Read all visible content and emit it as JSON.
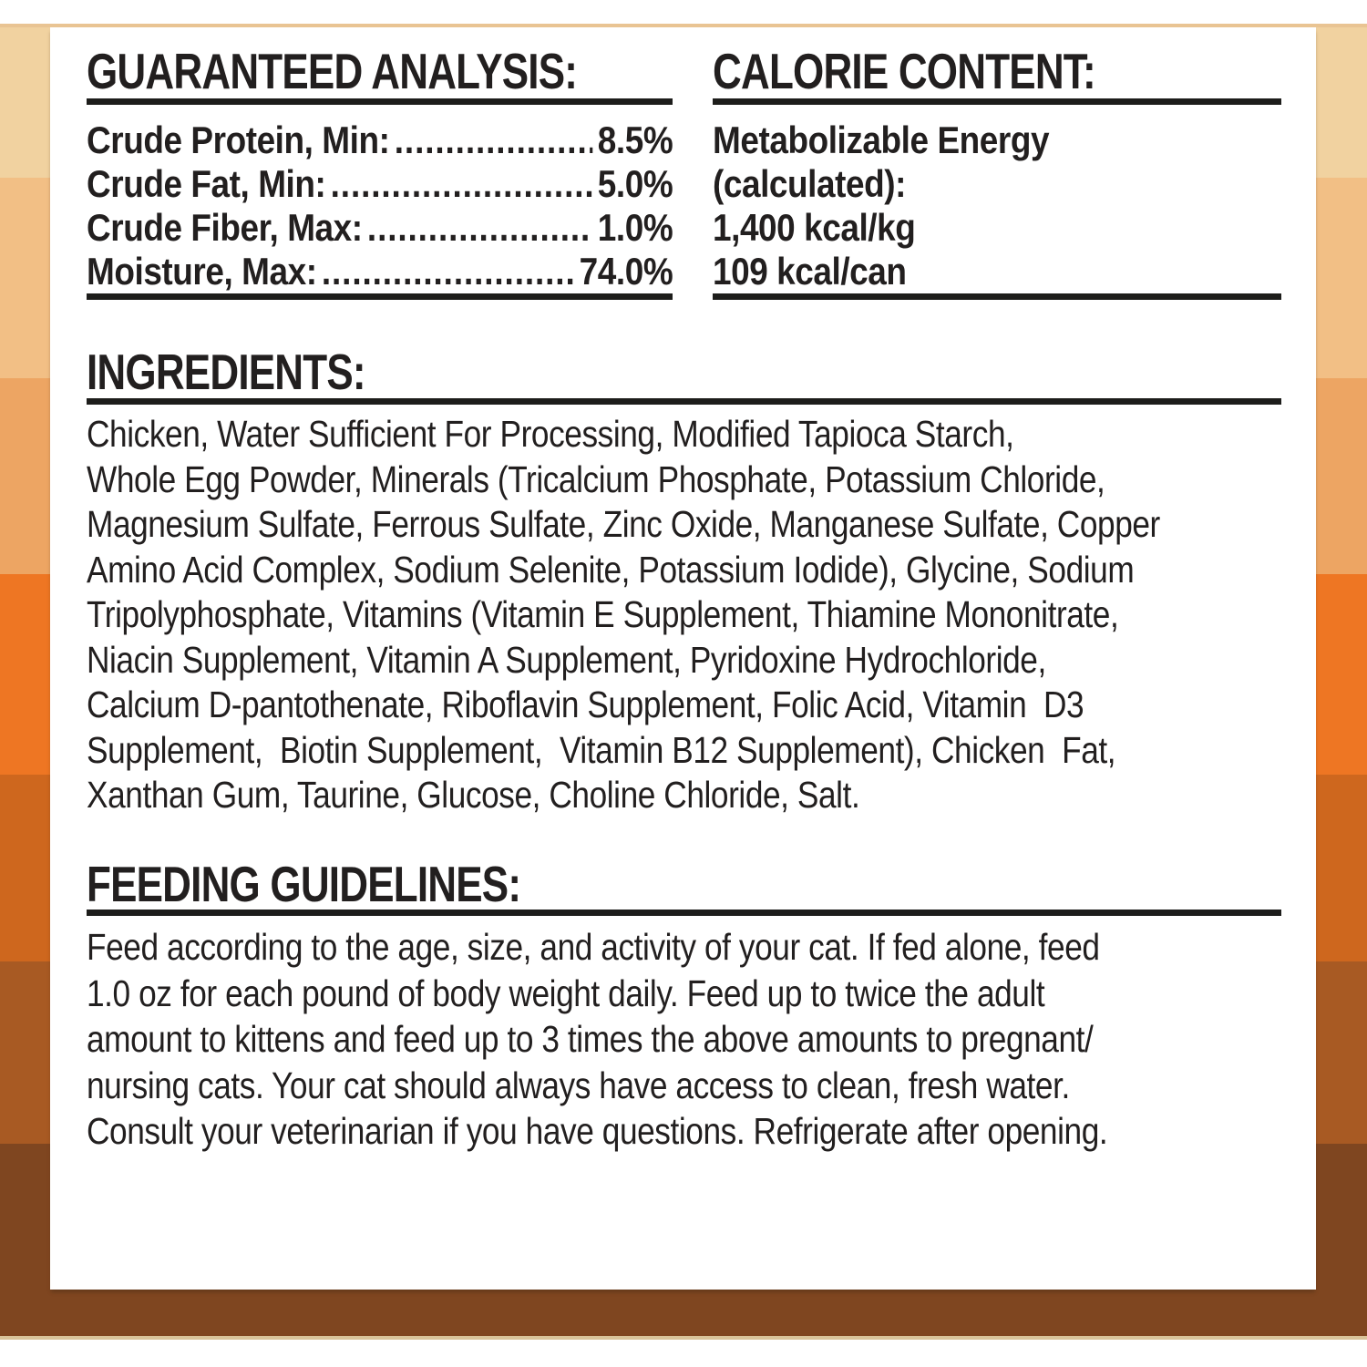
{
  "frame": {
    "band_colors": [
      "#f1d2a0",
      "#f2bf85",
      "#eda563",
      "#ee7623",
      "#ce671e",
      "#a85a23",
      "#7f4620"
    ],
    "top_line_color": "#e9c493",
    "bottom_line_color": "#d9c49a",
    "panel_color": "#ffffff",
    "rule_color": "#1d1d1b",
    "text_color": "#221f1f"
  },
  "guaranteed_analysis": {
    "title": "GUARANTEED ANALYSIS:",
    "rows": [
      {
        "label": "Crude Protein, Min:",
        "leader": "............",
        "value": "8.5%"
      },
      {
        "label": "Crude Fat, Min:",
        "leader": "...................",
        "value": "5.0%"
      },
      {
        "label": "Crude Fiber, Max:",
        "leader": "................",
        "value": "1.0%"
      },
      {
        "label": "Moisture, Max:",
        "leader": "..................",
        "value": "74.0%"
      }
    ]
  },
  "calorie_content": {
    "title": "CALORIE CONTENT:",
    "lines": [
      "Metabolizable Energy",
      "(calculated):",
      "1,400 kcal/kg",
      "109 kcal/can"
    ]
  },
  "ingredients": {
    "title": "INGREDIENTS:",
    "lines": [
      "Chicken, Water Sufficient For Processing, Modified Tapioca Starch,",
      "Whole Egg Powder, Minerals (Tricalcium Phosphate, Potassium Chloride,",
      "Magnesium Sulfate, Ferrous Sulfate, Zinc Oxide, Manganese Sulfate, Copper",
      "Amino Acid Complex, Sodium Selenite, Potassium Iodide), Glycine, Sodium",
      "Tripolyphosphate, Vitamins (Vitamin E Supplement, Thiamine Mononitrate,",
      "Niacin Supplement, Vitamin A Supplement, Pyridoxine Hydrochloride,",
      "Calcium D-pantothenate, Riboflavin Supplement, Folic Acid, Vitamin  D3",
      "Supplement,  Biotin Supplement,  Vitamin B12 Supplement), Chicken  Fat,",
      "Xanthan Gum, Taurine, Glucose, Choline Chloride, Salt."
    ]
  },
  "feeding_guidelines": {
    "title": "FEEDING GUIDELINES:",
    "lines": [
      "Feed according to the age, size, and activity of your cat. If fed alone, feed",
      "1.0 oz for each pound of body weight daily. Feed up to twice the adult",
      "amount to kittens and feed up to 3 times the above amounts to pregnant/",
      "nursing cats. Your cat should always have access to clean, fresh water.",
      "Consult your veterinarian if you have questions. Refrigerate after opening."
    ]
  }
}
